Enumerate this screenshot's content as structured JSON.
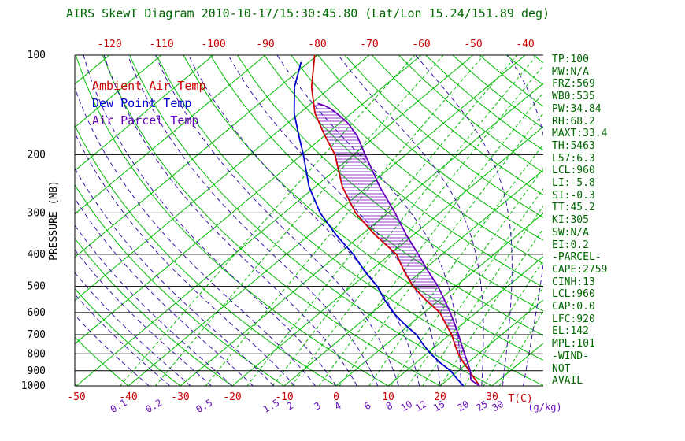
{
  "title": "AIRS SkewT Diagram 2010-10-17/15:30:45.80 (Lat/Lon 15.24/151.89 deg)",
  "legend": [
    {
      "label": "Ambient Air Temp",
      "color": "#cc0000"
    },
    {
      "label": "Dew Point Temp",
      "color": "#0000cc"
    },
    {
      "label": "Air Parcel Temp",
      "color": "#6600bb"
    }
  ],
  "stats": [
    "TP:100",
    "MW:N/A",
    "FRZ:569",
    "WB0:535",
    "PW:34.84",
    "RH:68.2",
    "MAXT:33.4",
    "TH:5463",
    "L57:6.3",
    "LCL:960",
    "LI:-5.8",
    "SI:-0.3",
    "TT:45.2",
    "KI:305",
    "SW:N/A",
    "EI:0.2",
    "-PARCEL-",
    "CAPE:2759",
    "CINH:13",
    "LCL:960",
    "CAP:0.0",
    "LFC:920",
    "EL:142",
    "MPL:101",
    "-WIND-",
    "NOT",
    "AVAIL"
  ],
  "colors": {
    "green": "#00bb00",
    "moist": "#3c14aa",
    "mix_label": "#6611bb",
    "red": "#cc0000",
    "blue": "#0000cc",
    "parcel": "#6600bb",
    "heading": "#006600",
    "axis": "#000000"
  },
  "chart_data": {
    "type": "line",
    "title": "AIRS SkewT Diagram 2010-10-17/15:30:45.80 (Lat/Lon 15.24/151.89 deg)",
    "y_axis": {
      "label": "PRESSURE (MB)",
      "scale": "log",
      "range": [
        100,
        1000
      ],
      "ticks_mb": [
        100,
        200,
        300,
        400,
        500,
        600,
        700,
        800,
        900,
        1000
      ]
    },
    "x_axis": {
      "label": "T(C)",
      "skewed": true,
      "top_ticks_c": [
        -120,
        -110,
        -100,
        -90,
        -80,
        -70,
        -60,
        -50,
        -40
      ],
      "bottom_ticks_c": [
        -50,
        -40,
        -30,
        -20,
        -10,
        0,
        10,
        20,
        30
      ]
    },
    "mixing_axis": {
      "unit": "(g/kg)",
      "ticks_gkg": [
        0.1,
        0.2,
        0.5,
        1.5,
        2,
        3,
        4,
        6,
        8,
        10,
        12,
        15,
        20,
        25,
        30
      ]
    },
    "background": {
      "isotherms_c": {
        "min": -120,
        "max": 40,
        "step": 10
      },
      "dry_adiabats_c": {
        "min": -60,
        "max": 180,
        "step": 10
      },
      "moist_adiabats_c": {
        "min": -36,
        "max": 36,
        "step": 4
      },
      "mixing_ratio_lines_gkg": [
        0.1,
        0.2,
        0.5,
        1,
        1.5,
        2,
        3,
        4,
        6,
        8,
        10,
        12,
        15,
        20,
        25,
        30
      ]
    },
    "series": [
      {
        "name": "Ambient Air Temp",
        "color": "#cc0000",
        "points_mb_c": [
          [
            1000,
            27.6
          ],
          [
            950,
            24.9
          ],
          [
            900,
            22.1
          ],
          [
            850,
            19.1
          ],
          [
            800,
            16.1
          ],
          [
            750,
            13.3
          ],
          [
            700,
            10.4
          ],
          [
            650,
            6.8
          ],
          [
            600,
            3.0
          ],
          [
            550,
            -2.6
          ],
          [
            500,
            -8.2
          ],
          [
            450,
            -13.4
          ],
          [
            400,
            -18.8
          ],
          [
            350,
            -27.3
          ],
          [
            300,
            -36.2
          ],
          [
            250,
            -44.8
          ],
          [
            200,
            -53.6
          ],
          [
            175,
            -60.0
          ],
          [
            150,
            -67.0
          ],
          [
            125,
            -73.7
          ],
          [
            100,
            -80.5
          ]
        ]
      },
      {
        "name": "Dew Point Temp",
        "color": "#0000cc",
        "points_mb_c": [
          [
            1000,
            24.5
          ],
          [
            950,
            21.5
          ],
          [
            900,
            18.5
          ],
          [
            850,
            14.6
          ],
          [
            800,
            10.8
          ],
          [
            750,
            7.2
          ],
          [
            700,
            3.6
          ],
          [
            650,
            -1.2
          ],
          [
            600,
            -6.0
          ],
          [
            550,
            -10.5
          ],
          [
            500,
            -15.1
          ],
          [
            450,
            -21.0
          ],
          [
            400,
            -27.1
          ],
          [
            350,
            -34.8
          ],
          [
            300,
            -43.0
          ],
          [
            250,
            -51.2
          ],
          [
            200,
            -59.7
          ],
          [
            175,
            -65.0
          ],
          [
            150,
            -71.0
          ],
          [
            125,
            -77.0
          ],
          [
            105,
            -81.5
          ]
        ]
      },
      {
        "name": "Air Parcel Temp",
        "color": "#6600bb",
        "points_mb_c": [
          [
            1000,
            27.6
          ],
          [
            960,
            24.6
          ],
          [
            950,
            24.2
          ],
          [
            900,
            22.3
          ],
          [
            850,
            19.9
          ],
          [
            800,
            17.3
          ],
          [
            750,
            14.6
          ],
          [
            700,
            11.7
          ],
          [
            650,
            8.5
          ],
          [
            600,
            5.0
          ],
          [
            550,
            1.0
          ],
          [
            500,
            -3.4
          ],
          [
            450,
            -8.8
          ],
          [
            400,
            -14.6
          ],
          [
            350,
            -21.3
          ],
          [
            300,
            -28.6
          ],
          [
            250,
            -37.6
          ],
          [
            200,
            -47.8
          ],
          [
            175,
            -53.8
          ],
          [
            160,
            -58.6
          ],
          [
            150,
            -62.8
          ],
          [
            145,
            -65.2
          ],
          [
            142,
            -67.0
          ],
          [
            140,
            -68.8
          ]
        ]
      }
    ],
    "cape_hatch": {
      "between": [
        "Ambient Air Temp",
        "Air Parcel Temp"
      ],
      "pressure_range_mb": [
        142,
        920
      ]
    }
  }
}
